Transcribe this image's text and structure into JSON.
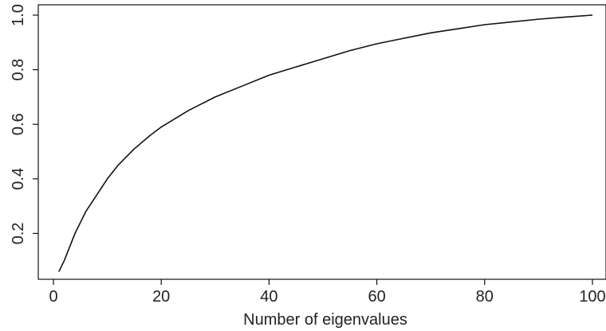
{
  "chart_data": {
    "type": "line",
    "title": "",
    "xlabel": "Number of eigenvalues",
    "ylabel": "",
    "xlim": [
      0,
      100
    ],
    "ylim": [
      0.05,
      1.0
    ],
    "x_ticks": [
      0,
      20,
      40,
      60,
      80,
      100
    ],
    "x_tick_labels": [
      "0",
      "20",
      "40",
      "60",
      "80",
      "100"
    ],
    "y_ticks": [
      0.2,
      0.4,
      0.6,
      0.8,
      1.0
    ],
    "y_tick_labels": [
      "0.2",
      "0.4",
      "0.6",
      "0.8",
      "1.0"
    ],
    "grid": false,
    "line_color": "#111111",
    "series": [
      {
        "x": [
          1,
          2,
          3,
          4,
          5,
          6,
          8,
          10,
          12,
          15,
          18,
          20,
          25,
          30,
          35,
          40,
          45,
          50,
          55,
          60,
          65,
          70,
          75,
          80,
          85,
          90,
          95,
          100
        ],
        "y": [
          0.06,
          0.1,
          0.15,
          0.2,
          0.24,
          0.28,
          0.34,
          0.4,
          0.45,
          0.51,
          0.56,
          0.59,
          0.65,
          0.7,
          0.74,
          0.78,
          0.81,
          0.84,
          0.87,
          0.895,
          0.915,
          0.935,
          0.95,
          0.965,
          0.975,
          0.985,
          0.993,
          1.0
        ]
      }
    ]
  }
}
